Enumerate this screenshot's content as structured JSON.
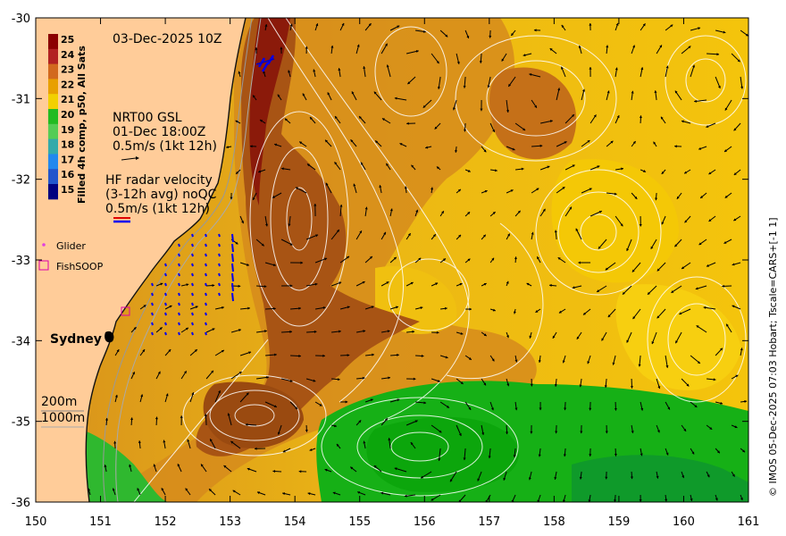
{
  "map": {
    "timestamp": "03-Dec-2025 10Z",
    "colorbar": {
      "title": "Filled 4h comp, p50, All Sats",
      "ticks": [
        "25",
        "24",
        "23",
        "22",
        "21",
        "20",
        "19",
        "18",
        "17",
        "16",
        "15"
      ],
      "colors": [
        "#8b0000",
        "#b22222",
        "#d2691e",
        "#e8a000",
        "#f2d000",
        "#22bb22",
        "#55cc55",
        "#33aaaa",
        "#2288ee",
        "#2255cc",
        "#000080"
      ]
    },
    "glider_key": {
      "title": "NRT00 GSL",
      "date": "01-Dec 18:00Z",
      "scale": "0.5m/s (1kt 12h)"
    },
    "hf_radar": {
      "line1": "HF radar velocity",
      "line2": "(3-12h avg) noQC",
      "line3": "0.5m/s (1kt 12h)"
    },
    "legend": {
      "glider": "Glider",
      "fishsoop": "FishSOOP"
    },
    "city": "Sydney",
    "isobaths": {
      "a": "200m",
      "b": "1000m"
    },
    "credit": "© IMOS 05-Dec-2025 07:03 Hobart; Tscale=CARS+[-1 1]",
    "x_ticks": [
      "150",
      "151",
      "152",
      "153",
      "154",
      "155",
      "156",
      "157",
      "158",
      "159",
      "160",
      "161"
    ],
    "y_ticks": [
      "-30",
      "-31",
      "-32",
      "-33",
      "-34",
      "-35",
      "-36"
    ],
    "lon_range": [
      150,
      161
    ],
    "lat_range": [
      -36,
      -30
    ],
    "colors": {
      "land": "#ffcc99",
      "warm_core": "#a0520a",
      "mid_orange": "#d98a1a",
      "yellow": "#f5c400",
      "green": "#14b414",
      "hf_arrow": "#0000ee"
    }
  }
}
